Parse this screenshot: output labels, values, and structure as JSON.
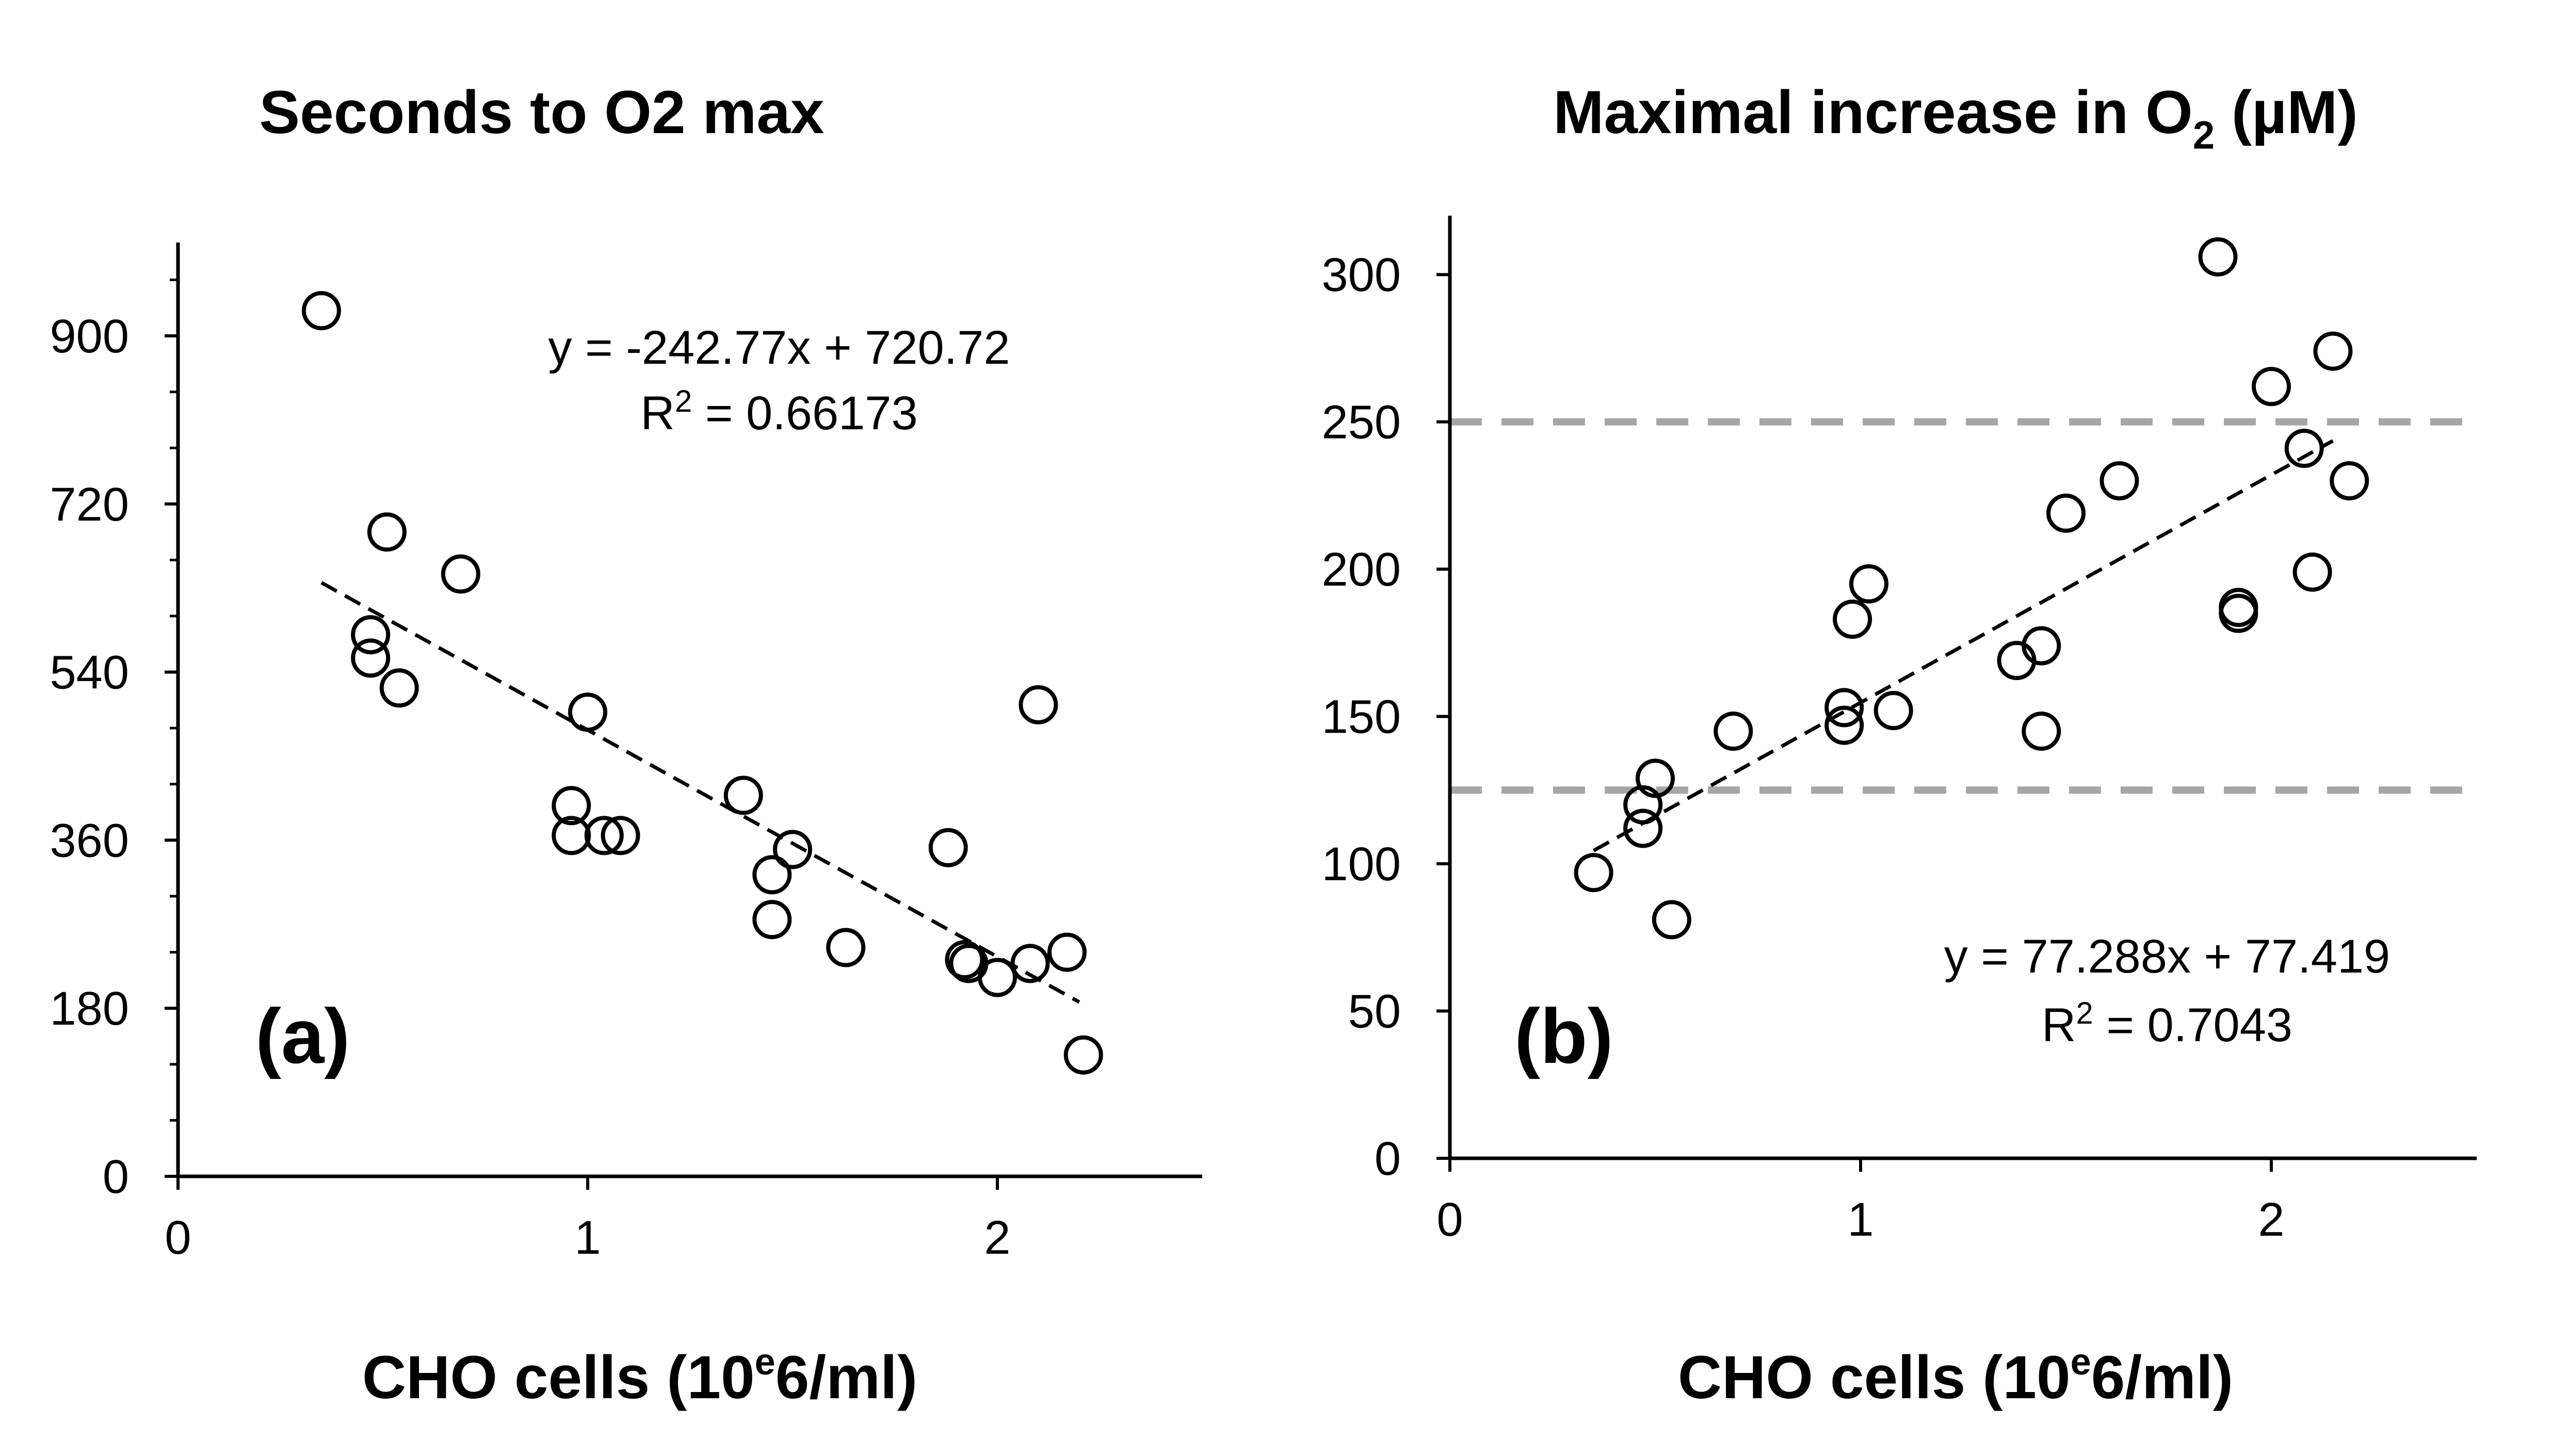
{
  "figure": {
    "background": "#ffffff",
    "ink": "#000000",
    "ref_line_color": "#a6a6a6"
  },
  "chart_data": [
    {
      "type": "scatter",
      "title": "Seconds to O2 max",
      "panel_label": "(a)",
      "xlabel": {
        "before": "CHO cells (10",
        "sup": "e",
        "after": "6/ml)"
      },
      "ylabel": "",
      "xlim": [
        0,
        2.5
      ],
      "ylim": [
        0,
        1000
      ],
      "x_ticks": [
        0,
        1,
        2
      ],
      "x_tick_labels": [
        "0",
        "1",
        "2"
      ],
      "y_ticks": [
        0,
        180,
        360,
        540,
        720,
        900
      ],
      "y_tick_labels": [
        "0",
        "180",
        "360",
        "540",
        "720",
        "900"
      ],
      "y_minor_step": 60,
      "trend": {
        "slope": -242.77,
        "intercept": 720.72,
        "x_range": [
          0.35,
          2.2
        ]
      },
      "equation": "y = -242.77x + 720.72",
      "r2": {
        "before": "R",
        "sup": "2",
        "after": " = 0.66173"
      },
      "points": [
        {
          "x": 0.35,
          "y": 927
        },
        {
          "x": 0.47,
          "y": 580
        },
        {
          "x": 0.47,
          "y": 555
        },
        {
          "x": 0.51,
          "y": 690
        },
        {
          "x": 0.54,
          "y": 523
        },
        {
          "x": 0.69,
          "y": 645
        },
        {
          "x": 0.96,
          "y": 397
        },
        {
          "x": 0.96,
          "y": 365
        },
        {
          "x": 1.0,
          "y": 497
        },
        {
          "x": 1.04,
          "y": 365
        },
        {
          "x": 1.08,
          "y": 365
        },
        {
          "x": 1.38,
          "y": 408
        },
        {
          "x": 1.45,
          "y": 323
        },
        {
          "x": 1.45,
          "y": 275
        },
        {
          "x": 1.5,
          "y": 350
        },
        {
          "x": 1.63,
          "y": 245
        },
        {
          "x": 1.88,
          "y": 352
        },
        {
          "x": 1.92,
          "y": 232
        },
        {
          "x": 1.93,
          "y": 228
        },
        {
          "x": 2.0,
          "y": 213
        },
        {
          "x": 2.08,
          "y": 228
        },
        {
          "x": 2.1,
          "y": 505
        },
        {
          "x": 2.17,
          "y": 240
        },
        {
          "x": 2.21,
          "y": 130
        }
      ]
    },
    {
      "type": "scatter",
      "title": {
        "before": "Maximal increase in O",
        "sub": "2",
        "after": " (µM)"
      },
      "panel_label": "(b)",
      "xlabel": {
        "before": "CHO cells (10",
        "sup": "e",
        "after": "6/ml)"
      },
      "ylabel": "",
      "xlim": [
        0,
        2.5
      ],
      "ylim": [
        0,
        320
      ],
      "x_ticks": [
        0,
        1,
        2
      ],
      "x_tick_labels": [
        "0",
        "1",
        "2"
      ],
      "y_ticks": [
        0,
        50,
        100,
        150,
        200,
        250,
        300
      ],
      "y_tick_labels": [
        "0",
        "50",
        "100",
        "150",
        "200",
        "250",
        "300"
      ],
      "reference_lines": [
        250,
        125
      ],
      "trend": {
        "slope": 77.288,
        "intercept": 77.419,
        "x_range": [
          0.35,
          2.15
        ]
      },
      "equation": "y = 77.288x + 77.419",
      "r2": {
        "before": "R",
        "sup": "2",
        "after": " = 0.7043"
      },
      "points": [
        {
          "x": 0.35,
          "y": 97
        },
        {
          "x": 0.47,
          "y": 120
        },
        {
          "x": 0.47,
          "y": 112
        },
        {
          "x": 0.5,
          "y": 129
        },
        {
          "x": 0.54,
          "y": 81
        },
        {
          "x": 0.69,
          "y": 145
        },
        {
          "x": 0.96,
          "y": 153
        },
        {
          "x": 0.96,
          "y": 147
        },
        {
          "x": 0.98,
          "y": 183
        },
        {
          "x": 1.02,
          "y": 195
        },
        {
          "x": 1.08,
          "y": 152
        },
        {
          "x": 1.38,
          "y": 169
        },
        {
          "x": 1.44,
          "y": 174
        },
        {
          "x": 1.44,
          "y": 145
        },
        {
          "x": 1.5,
          "y": 219
        },
        {
          "x": 1.63,
          "y": 230
        },
        {
          "x": 1.87,
          "y": 306
        },
        {
          "x": 1.92,
          "y": 187
        },
        {
          "x": 1.92,
          "y": 185
        },
        {
          "x": 2.0,
          "y": 262
        },
        {
          "x": 2.08,
          "y": 241
        },
        {
          "x": 2.1,
          "y": 199
        },
        {
          "x": 2.15,
          "y": 274
        },
        {
          "x": 2.19,
          "y": 230
        }
      ]
    }
  ]
}
